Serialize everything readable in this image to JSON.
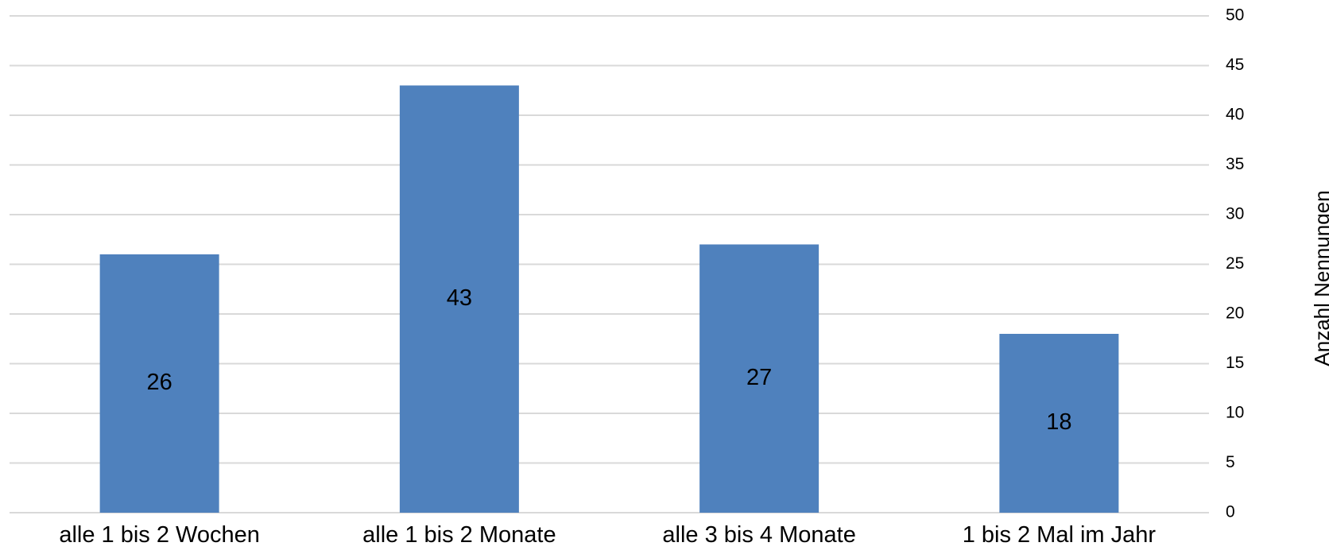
{
  "chart_data": {
    "type": "bar",
    "categories": [
      "alle 1 bis 2 Wochen",
      "alle 1 bis 2 Monate",
      "alle 3 bis 4 Monate",
      "1 bis 2 Mal im Jahr"
    ],
    "values": [
      26,
      43,
      27,
      18
    ],
    "data_labels": [
      "26",
      "43",
      "27",
      "18"
    ],
    "title": "",
    "xlabel": "",
    "ylabel": "Anzahl Nennungen",
    "ylim": [
      0,
      50
    ],
    "yticks": [
      0,
      5,
      10,
      15,
      20,
      25,
      30,
      35,
      40,
      45,
      50
    ],
    "y_axis_position": "right",
    "grid": true,
    "legend": "none",
    "colors": {
      "bar": "#4F81BD",
      "grid": "#D9D9D9",
      "text": "#000000"
    }
  }
}
